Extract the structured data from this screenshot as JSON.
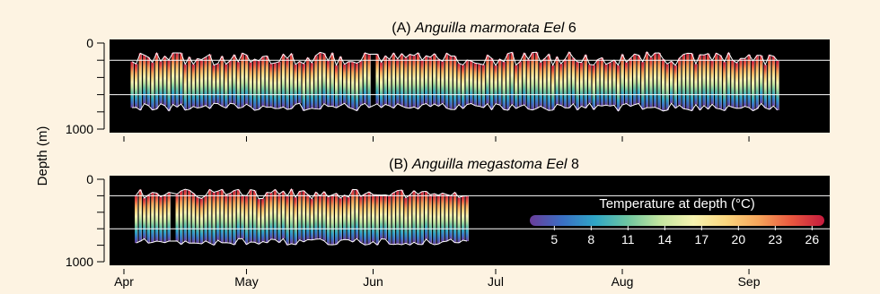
{
  "chart_data": [
    {
      "type": "heatmap",
      "panel_label": "(A)",
      "species": "Anguilla marmorata",
      "individual": "Eel 6",
      "ylabel": "Depth (m)",
      "y_ticks": [
        0,
        1000
      ],
      "ylim": [
        0,
        1000
      ],
      "reference_depths_m": [
        200,
        600
      ],
      "date_range": [
        "Apr 3",
        "Sep 8"
      ],
      "gap_dates": [
        "Jun 1"
      ],
      "dive_depth_range_m": {
        "shallow_min": 100,
        "shallow_max": 260,
        "deep_min": 700,
        "deep_max": 790
      },
      "upper_temperature_C": 24,
      "lower_temperature_C": 5
    },
    {
      "type": "heatmap",
      "panel_label": "(B)",
      "species": "Anguilla megastoma",
      "individual": "Eel 8",
      "ylabel": "Depth (m)",
      "y_ticks": [
        0,
        1000
      ],
      "ylim": [
        0,
        1000
      ],
      "reference_depths_m": [
        200,
        600
      ],
      "date_range": [
        "Apr 4",
        "Jun 24"
      ],
      "gap_dates": [
        "Apr 13"
      ],
      "dive_depth_range_m": {
        "shallow_min": 120,
        "shallow_max": 240,
        "deep_min": 720,
        "deep_max": 800
      },
      "upper_temperature_C": 24,
      "lower_temperature_C": 5
    }
  ],
  "x_axis": {
    "tick_labels": [
      "Apr",
      "May",
      "Jun",
      "Jul",
      "Aug",
      "Sep"
    ]
  },
  "colorbar": {
    "title": "Temperature at depth (°C)",
    "ticks": [
      "5",
      "8",
      "11",
      "14",
      "17",
      "20",
      "23",
      "26"
    ],
    "range": [
      3,
      27
    ],
    "colors": [
      "#6a3d9a",
      "#3a6fc4",
      "#2fa6c6",
      "#6fc6a0",
      "#c5e6a0",
      "#f7f3b0",
      "#fbd67e",
      "#f6a45a",
      "#e9573f",
      "#c51b3e"
    ]
  },
  "background_color": "#000000",
  "page_color": "#fdf3e2"
}
